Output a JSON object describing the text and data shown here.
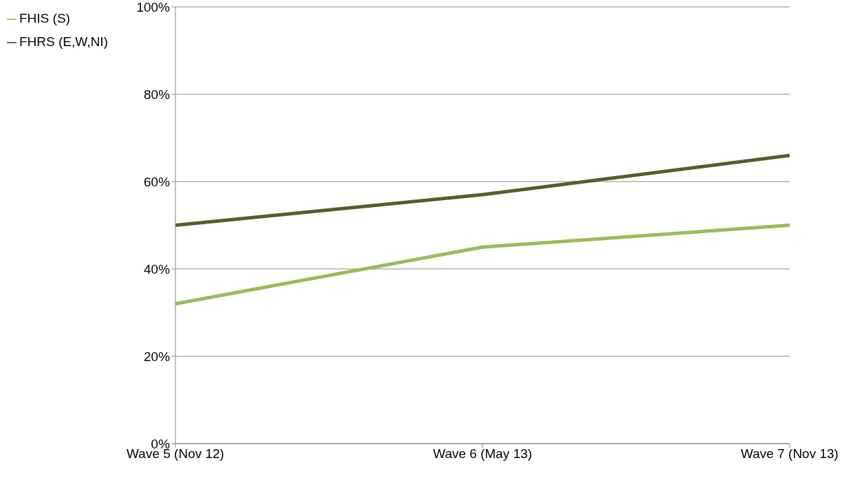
{
  "chart_data": {
    "type": "line",
    "categories": [
      "Wave 5 (Nov 12)",
      "Wave 6 (May 13)",
      "Wave 7 (Nov 13)"
    ],
    "series": [
      {
        "name": "FHRS (E,W,NI)",
        "color": "#4f6228",
        "values": [
          50,
          57,
          66
        ]
      },
      {
        "name": "FHIS (S)",
        "color": "#9bbb59",
        "values": [
          32,
          45,
          50
        ]
      }
    ],
    "ylim": [
      0,
      100
    ],
    "yticks": [
      {
        "value": 0,
        "label": "0%"
      },
      {
        "value": 20,
        "label": "20%"
      },
      {
        "value": 40,
        "label": "40%"
      },
      {
        "value": 60,
        "label": "60%"
      },
      {
        "value": 80,
        "label": "80%"
      },
      {
        "value": 100,
        "label": "100%"
      }
    ],
    "grid": "y",
    "legend": "top left",
    "line_style": "solid"
  }
}
